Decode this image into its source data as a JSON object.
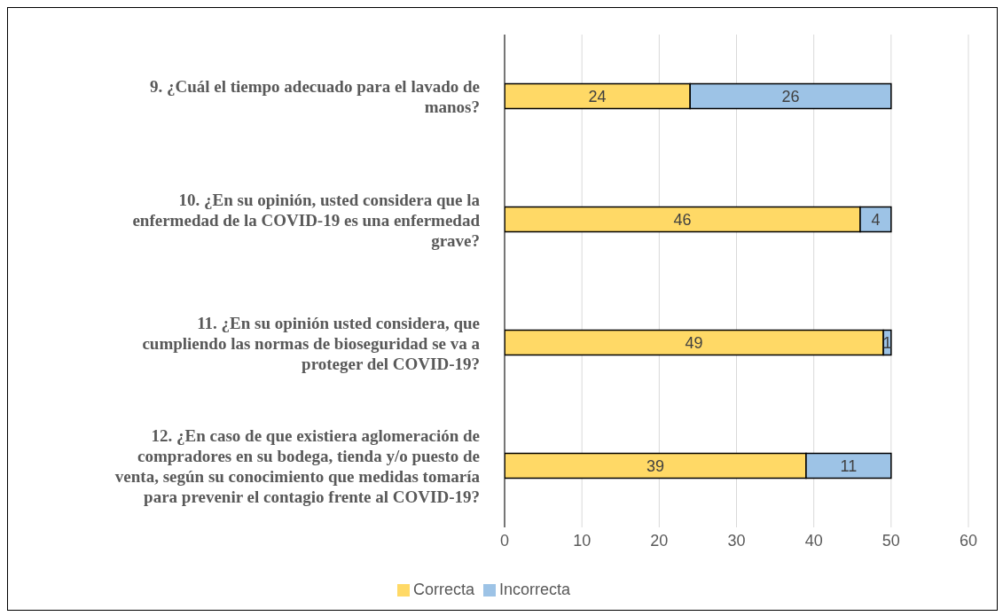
{
  "chart_data": {
    "type": "bar",
    "orientation": "horizontal",
    "stacked": true,
    "categories": [
      "9. ¿Cuál el tiempo adecuado para el lavado de manos?",
      "10. ¿En su opinión, usted considera que la enfermedad de la COVID-19 es una enfermedad grave?",
      "11. ¿En su opinión usted considera, que cumpliendo las normas de bioseguridad se va a proteger del COVID-19?",
      "12. ¿En caso de que existiera aglomeración de compradores en su bodega, tienda y/o puesto de venta, según su conocimiento que medidas tomaría para prevenir el contagio frente al COVID-19?"
    ],
    "series": [
      {
        "name": "Correcta",
        "color": "#ffd966",
        "values": [
          24,
          46,
          49,
          39
        ]
      },
      {
        "name": "Incorrecta",
        "color": "#9dc3e6",
        "values": [
          26,
          4,
          1,
          11
        ]
      }
    ],
    "xlim": [
      0,
      60
    ],
    "xticks": [
      0,
      10,
      20,
      30,
      40,
      50,
      60
    ],
    "grid": "x",
    "legend": "bottom",
    "data_labels": true
  }
}
